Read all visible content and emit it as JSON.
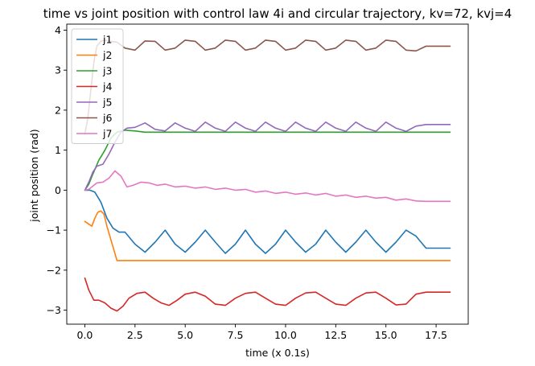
{
  "chart_data": {
    "type": "line",
    "title": "time vs joint position with control law 4i and circular trajectory, kv=72, kvj=4",
    "xlabel": "time (x 0.1s)",
    "ylabel": "joint position (rad)",
    "xlim": [
      -0.9,
      19.1
    ],
    "ylim": [
      -3.35,
      4.15
    ],
    "xticks": [
      0,
      2.5,
      5,
      7.5,
      10,
      12.5,
      15,
      17.5
    ],
    "xtick_labels": [
      "0.0",
      "2.5",
      "5.0",
      "7.5",
      "10.0",
      "12.5",
      "15.0",
      "17.5"
    ],
    "yticks": [
      -3,
      -2,
      -1,
      0,
      1,
      2,
      3,
      4
    ],
    "ytick_labels": [
      "−3",
      "−2",
      "−1",
      "0",
      "1",
      "2",
      "3",
      "4"
    ],
    "grid": false,
    "legend_position": "top-left",
    "series": [
      {
        "name": "j1",
        "color": "#1f77b4",
        "x": [
          0,
          0.25,
          0.5,
          0.8,
          1.1,
          1.4,
          1.7,
          2.0,
          2.5,
          3.0,
          3.5,
          4.0,
          4.5,
          5.0,
          5.5,
          6.0,
          6.5,
          7.0,
          7.5,
          8.0,
          8.5,
          9.0,
          9.5,
          10.0,
          10.5,
          11.0,
          11.5,
          12.0,
          12.5,
          13.0,
          13.5,
          14.0,
          14.5,
          15.0,
          15.5,
          16.0,
          16.5,
          17.0,
          17.5,
          18.2
        ],
        "y": [
          0,
          0,
          -0.05,
          -0.3,
          -0.7,
          -0.95,
          -1.05,
          -1.05,
          -1.35,
          -1.55,
          -1.3,
          -1.0,
          -1.35,
          -1.55,
          -1.3,
          -1.0,
          -1.3,
          -1.58,
          -1.35,
          -1.0,
          -1.35,
          -1.58,
          -1.35,
          -1.0,
          -1.3,
          -1.55,
          -1.35,
          -1.0,
          -1.3,
          -1.55,
          -1.3,
          -1.0,
          -1.3,
          -1.55,
          -1.3,
          -1.0,
          -1.15,
          -1.45,
          -1.45,
          -1.45
        ]
      },
      {
        "name": "j2",
        "color": "#ff7f0e",
        "x": [
          0,
          0.2,
          0.35,
          0.5,
          0.65,
          0.8,
          0.95,
          1.1,
          1.6,
          2.0,
          5.0,
          10.0,
          15.0,
          18.2
        ],
        "y": [
          -0.78,
          -0.85,
          -0.9,
          -0.7,
          -0.55,
          -0.52,
          -0.6,
          -0.9,
          -1.76,
          -1.76,
          -1.76,
          -1.76,
          -1.76,
          -1.76
        ]
      },
      {
        "name": "j3",
        "color": "#2ca02c",
        "x": [
          0,
          0.2,
          0.4,
          0.7,
          1.0,
          1.3,
          1.6,
          2.0,
          2.5,
          3.0,
          5.0,
          7.5,
          10.0,
          12.5,
          15.0,
          17.0,
          18.2
        ],
        "y": [
          0,
          0.15,
          0.4,
          0.75,
          1.0,
          1.3,
          1.45,
          1.5,
          1.48,
          1.45,
          1.45,
          1.45,
          1.45,
          1.45,
          1.45,
          1.45,
          1.45
        ]
      },
      {
        "name": "j4",
        "color": "#d62728",
        "x": [
          0,
          0.2,
          0.45,
          0.7,
          1.0,
          1.3,
          1.6,
          1.9,
          2.2,
          2.6,
          3.0,
          3.4,
          3.8,
          4.2,
          4.6,
          5.0,
          5.5,
          6.0,
          6.5,
          7.0,
          7.5,
          8.0,
          8.5,
          9.0,
          9.5,
          10.0,
          10.5,
          11.0,
          11.5,
          12.0,
          12.5,
          13.0,
          13.5,
          14.0,
          14.5,
          15.0,
          15.5,
          16.0,
          16.5,
          17.0,
          17.5,
          18.2
        ],
        "y": [
          -2.2,
          -2.5,
          -2.75,
          -2.75,
          -2.82,
          -2.95,
          -3.02,
          -2.9,
          -2.7,
          -2.58,
          -2.55,
          -2.7,
          -2.82,
          -2.88,
          -2.75,
          -2.6,
          -2.55,
          -2.65,
          -2.85,
          -2.88,
          -2.7,
          -2.58,
          -2.55,
          -2.7,
          -2.85,
          -2.88,
          -2.7,
          -2.57,
          -2.55,
          -2.7,
          -2.85,
          -2.88,
          -2.7,
          -2.57,
          -2.55,
          -2.7,
          -2.87,
          -2.85,
          -2.6,
          -2.55,
          -2.55,
          -2.55
        ]
      },
      {
        "name": "j5",
        "color": "#9467bd",
        "x": [
          0,
          0.2,
          0.4,
          0.6,
          0.9,
          1.2,
          1.5,
          1.8,
          2.1,
          2.5,
          3.0,
          3.5,
          4.0,
          4.5,
          5.0,
          5.5,
          6.0,
          6.5,
          7.0,
          7.5,
          8.0,
          8.5,
          9.0,
          9.5,
          10.0,
          10.5,
          11.0,
          11.5,
          12.0,
          12.5,
          13.0,
          13.5,
          14.0,
          14.5,
          15.0,
          15.5,
          16.0,
          16.5,
          17.0,
          17.5,
          18.2
        ],
        "y": [
          0,
          0.2,
          0.45,
          0.6,
          0.65,
          0.9,
          1.2,
          1.45,
          1.55,
          1.57,
          1.68,
          1.52,
          1.48,
          1.68,
          1.55,
          1.47,
          1.7,
          1.55,
          1.47,
          1.7,
          1.55,
          1.47,
          1.7,
          1.55,
          1.47,
          1.7,
          1.55,
          1.47,
          1.7,
          1.55,
          1.47,
          1.7,
          1.55,
          1.47,
          1.7,
          1.55,
          1.47,
          1.6,
          1.64,
          1.64,
          1.64
        ]
      },
      {
        "name": "j6",
        "color": "#8c564b",
        "x": [
          0,
          0.15,
          0.3,
          0.45,
          0.6,
          0.8,
          1.0,
          1.3,
          1.6,
          2.0,
          2.5,
          3.0,
          3.5,
          4.0,
          4.5,
          5.0,
          5.5,
          6.0,
          6.5,
          7.0,
          7.5,
          8.0,
          8.5,
          9.0,
          9.5,
          10.0,
          10.5,
          11.0,
          11.5,
          12.0,
          12.5,
          13.0,
          13.5,
          14.0,
          14.5,
          15.0,
          15.5,
          16.0,
          16.5,
          17.0,
          17.5,
          18.2
        ],
        "y": [
          1.4,
          1.8,
          2.5,
          3.2,
          3.6,
          3.72,
          3.75,
          3.72,
          3.7,
          3.55,
          3.5,
          3.73,
          3.72,
          3.5,
          3.55,
          3.75,
          3.72,
          3.5,
          3.55,
          3.75,
          3.72,
          3.5,
          3.55,
          3.75,
          3.72,
          3.5,
          3.55,
          3.75,
          3.72,
          3.5,
          3.55,
          3.75,
          3.72,
          3.5,
          3.55,
          3.75,
          3.72,
          3.5,
          3.48,
          3.6,
          3.6,
          3.6
        ]
      },
      {
        "name": "j7",
        "color": "#e377c2",
        "x": [
          0,
          0.2,
          0.4,
          0.6,
          0.9,
          1.2,
          1.5,
          1.8,
          2.1,
          2.4,
          2.8,
          3.2,
          3.6,
          4.0,
          4.5,
          5.0,
          5.5,
          6.0,
          6.5,
          7.0,
          7.5,
          8.0,
          8.5,
          9.0,
          9.5,
          10.0,
          10.5,
          11.0,
          11.5,
          12.0,
          12.5,
          13.0,
          13.5,
          14.0,
          14.5,
          15.0,
          15.5,
          16.0,
          16.5,
          17.0,
          17.5,
          18.2
        ],
        "y": [
          0,
          0.02,
          0.1,
          0.18,
          0.2,
          0.3,
          0.48,
          0.35,
          0.08,
          0.12,
          0.2,
          0.18,
          0.12,
          0.15,
          0.08,
          0.1,
          0.05,
          0.08,
          0.02,
          0.05,
          0.0,
          0.02,
          -0.05,
          -0.02,
          -0.08,
          -0.05,
          -0.1,
          -0.07,
          -0.12,
          -0.08,
          -0.15,
          -0.12,
          -0.18,
          -0.15,
          -0.2,
          -0.18,
          -0.25,
          -0.22,
          -0.27,
          -0.28,
          -0.28,
          -0.28
        ]
      }
    ]
  }
}
